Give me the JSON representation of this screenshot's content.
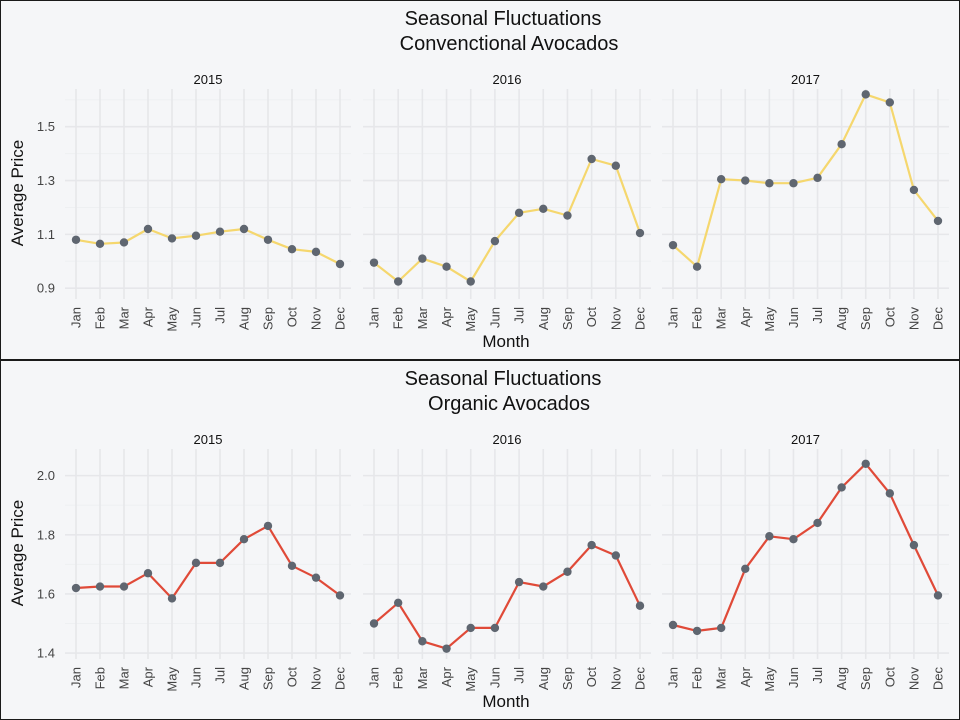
{
  "chart_data": [
    {
      "type": "line",
      "title": [
        "Seasonal Fluctuations",
        "Convenctional Avocados"
      ],
      "xlabel": "Month",
      "ylabel": "Average Price",
      "ylim": [
        0.86,
        1.64
      ],
      "yticks": [
        "0.9",
        "1.1",
        "1.3",
        "1.5"
      ],
      "categories": [
        "Jan",
        "Feb",
        "Mar",
        "Apr",
        "May",
        "Jun",
        "Jul",
        "Aug",
        "Sep",
        "Oct",
        "Nov",
        "Dec"
      ],
      "line_color": "#f5d76e",
      "point_color": "#5f6670",
      "grid": true,
      "facets": [
        {
          "label": "2015",
          "values": [
            1.08,
            1.065,
            1.07,
            1.12,
            1.085,
            1.095,
            1.11,
            1.12,
            1.08,
            1.045,
            1.035,
            0.99
          ]
        },
        {
          "label": "2016",
          "values": [
            0.995,
            0.925,
            1.01,
            0.98,
            0.925,
            1.075,
            1.18,
            1.195,
            1.17,
            1.38,
            1.355,
            1.105
          ]
        },
        {
          "label": "2017",
          "values": [
            1.06,
            0.98,
            1.305,
            1.3,
            1.29,
            1.29,
            1.31,
            1.435,
            1.62,
            1.59,
            1.265,
            1.15
          ]
        }
      ]
    },
    {
      "type": "line",
      "title": [
        "Seasonal Fluctuations",
        "Organic Avocados"
      ],
      "xlabel": "Month",
      "ylabel": "Average Price",
      "ylim": [
        1.38,
        2.09
      ],
      "yticks": [
        "1.4",
        "1.6",
        "1.8",
        "2.0"
      ],
      "categories": [
        "Jan",
        "Feb",
        "Mar",
        "Apr",
        "May",
        "Jun",
        "Jul",
        "Aug",
        "Sep",
        "Oct",
        "Nov",
        "Dec"
      ],
      "line_color": "#e04a38",
      "point_color": "#5f6670",
      "grid": true,
      "facets": [
        {
          "label": "2015",
          "values": [
            1.62,
            1.625,
            1.625,
            1.67,
            1.585,
            1.705,
            1.705,
            1.785,
            1.83,
            1.695,
            1.655,
            1.595
          ]
        },
        {
          "label": "2016",
          "values": [
            1.5,
            1.57,
            1.44,
            1.415,
            1.485,
            1.485,
            1.64,
            1.625,
            1.675,
            1.765,
            1.73,
            1.56
          ]
        },
        {
          "label": "2017",
          "values": [
            1.495,
            1.475,
            1.485,
            1.685,
            1.795,
            1.785,
            1.84,
            1.96,
            2.04,
            1.94,
            1.765,
            1.595
          ]
        }
      ]
    }
  ]
}
